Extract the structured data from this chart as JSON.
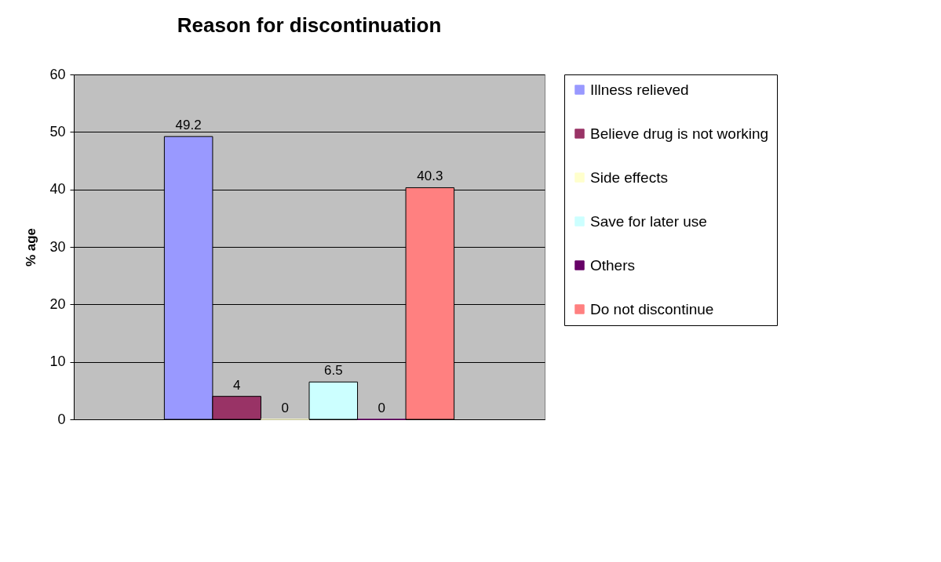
{
  "chart_data": {
    "type": "bar",
    "title": "Reason for discontinuation",
    "ylabel": "% age",
    "categories": [
      null
    ],
    "series": [
      {
        "name": "Illness relieved",
        "color": "#9999ff",
        "values": [
          49.2
        ]
      },
      {
        "name": "Believe drug is not working",
        "color": "#993366",
        "values": [
          4
        ]
      },
      {
        "name": "Side effects",
        "color": "#ffffcc",
        "values": [
          0
        ]
      },
      {
        "name": "Save for later use",
        "color": "#ccffff",
        "values": [
          6.5
        ]
      },
      {
        "name": "Others",
        "color": "#660066",
        "values": [
          0
        ]
      },
      {
        "name": "Do not discontinue",
        "color": "#ff8080",
        "values": [
          40.3
        ]
      }
    ],
    "ylim": [
      0,
      60
    ],
    "yticks": [
      0,
      10,
      20,
      30,
      40,
      50,
      60
    ],
    "grid": "y",
    "legend": "right",
    "data_labels": true
  }
}
